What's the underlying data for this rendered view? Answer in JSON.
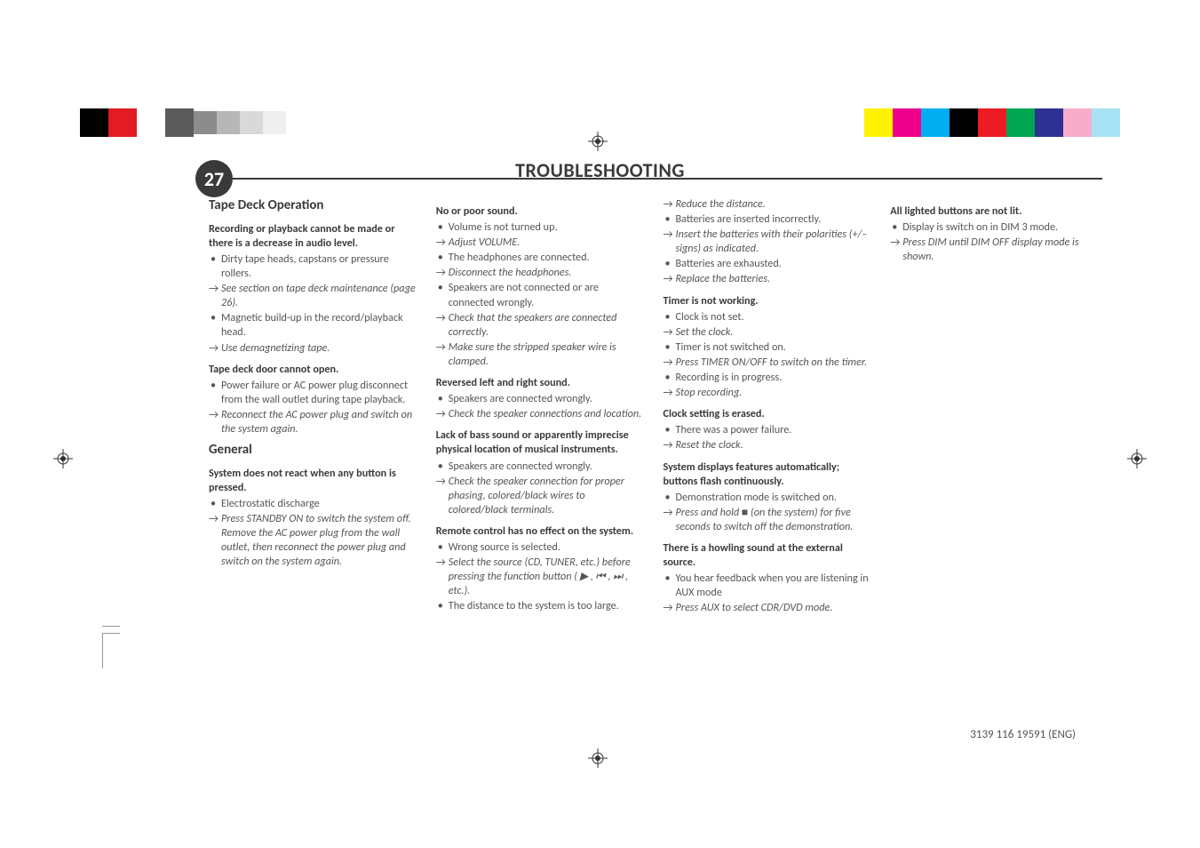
{
  "page_number": "27",
  "title": "TROUBLESHOOTING",
  "footer": "3139 116 19591 (ENG)",
  "color_bars": {
    "left": [
      "#000000",
      "#e31b23",
      "#ffffff",
      "#5b5b5b",
      "#8c8c8c",
      "#b7b7b7",
      "#d9d9d9",
      "#efefef"
    ],
    "right": [
      "#fff200",
      "#ec008c",
      "#00aeef",
      "#000000",
      "#ed1c24",
      "#00a651",
      "#2e3192",
      "#f7adc9",
      "#a6e2f4"
    ]
  },
  "columns": [
    {
      "sections": [
        {
          "heading": "Tape Deck Operation",
          "problems": [
            {
              "title": "Recording or playback cannot be made or there is a decrease in audio level.",
              "items": [
                {
                  "t": "cause",
                  "text": "Dirty tape heads, capstans or pressure rollers."
                },
                {
                  "t": "fix",
                  "text": "See section on tape deck maintenance (page 26)."
                },
                {
                  "t": "cause",
                  "text": "Magnetic build-up in the record/playback head."
                },
                {
                  "t": "fix",
                  "text": "Use demagnetizing tape."
                }
              ]
            },
            {
              "title": "Tape deck door cannot open.",
              "items": [
                {
                  "t": "cause",
                  "text": "Power failure or AC power plug disconnect from the wall outlet during tape playback."
                },
                {
                  "t": "fix",
                  "text": "Reconnect the AC power plug and switch on the system again."
                }
              ]
            }
          ]
        },
        {
          "heading": "General",
          "problems": [
            {
              "title": "System does not react when any button is pressed.",
              "items": [
                {
                  "t": "cause",
                  "text": "Electrostatic discharge"
                },
                {
                  "t": "fix",
                  "text": "Press STANDBY ON to switch the system off. Remove the AC power plug from the wall outlet, then reconnect the power plug and switch on the system again."
                }
              ]
            }
          ]
        }
      ]
    },
    {
      "sections": [
        {
          "heading": "",
          "problems": [
            {
              "title": "No or poor sound.",
              "items": [
                {
                  "t": "cause",
                  "text": "Volume is not turned up."
                },
                {
                  "t": "fix",
                  "text": "Adjust VOLUME."
                },
                {
                  "t": "cause",
                  "text": "The headphones are connected."
                },
                {
                  "t": "fix",
                  "text": "Disconnect the headphones."
                },
                {
                  "t": "cause",
                  "text": "Speakers are not connected or are connected wrongly."
                },
                {
                  "t": "fix",
                  "text": "Check that the speakers are connected correctly."
                },
                {
                  "t": "fix",
                  "text": "Make sure the stripped speaker wire is clamped."
                }
              ]
            },
            {
              "title": "Reversed left and right sound.",
              "items": [
                {
                  "t": "cause",
                  "text": "Speakers are connected wrongly."
                },
                {
                  "t": "fix",
                  "text": "Check the speaker connections and location."
                }
              ]
            },
            {
              "title": "Lack of bass sound or apparently imprecise physical location of musical instruments.",
              "items": [
                {
                  "t": "cause",
                  "text": "Speakers are connected wrongly."
                },
                {
                  "t": "fix",
                  "text": "Check the speaker connection for proper phasing, colored/black wires to colored/black terminals."
                }
              ]
            },
            {
              "title": "Remote control has no effect on the system.",
              "items": [
                {
                  "t": "cause",
                  "text": "Wrong source is selected."
                },
                {
                  "t": "fix",
                  "text": "Select the source (CD, TUNER, etc.) before pressing the function button ( ▶ , ⏮ , ⏭ , etc.)."
                },
                {
                  "t": "cause",
                  "text": "The distance to the system is too large."
                }
              ]
            }
          ]
        }
      ]
    },
    {
      "sections": [
        {
          "heading": "",
          "problems": [
            {
              "title": "",
              "items": [
                {
                  "t": "fix",
                  "text": "Reduce the distance."
                },
                {
                  "t": "cause",
                  "text": "Batteries are inserted incorrectly."
                },
                {
                  "t": "fix",
                  "text": "Insert the batteries with their polarities (+/– signs) as indicated."
                },
                {
                  "t": "cause",
                  "text": "Batteries are exhausted."
                },
                {
                  "t": "fix",
                  "text": "Replace the batteries."
                }
              ]
            },
            {
              "title": "Timer is not working.",
              "items": [
                {
                  "t": "cause",
                  "text": "Clock is not set."
                },
                {
                  "t": "fix",
                  "text": "Set the clock."
                },
                {
                  "t": "cause",
                  "text": "Timer is not switched on."
                },
                {
                  "t": "fix",
                  "text": "Press TIMER ON/OFF to switch on the timer."
                },
                {
                  "t": "cause",
                  "text": "Recording is in progress."
                },
                {
                  "t": "fix",
                  "text": "Stop recording."
                }
              ]
            },
            {
              "title": "Clock setting is erased.",
              "items": [
                {
                  "t": "cause",
                  "text": "There was a power failure."
                },
                {
                  "t": "fix",
                  "text": "Reset the clock."
                }
              ]
            },
            {
              "title": "System displays features automatically; buttons flash continuously.",
              "items": [
                {
                  "t": "cause",
                  "text": "Demonstration mode is switched on."
                },
                {
                  "t": "fix",
                  "text": "Press and hold ■ (on the system) for five seconds to switch off the demonstration."
                }
              ]
            },
            {
              "title": "There is a howling sound at the external source.",
              "items": [
                {
                  "t": "cause",
                  "text": "You hear feedback when you are listening in AUX mode"
                },
                {
                  "t": "fix",
                  "text": "Press AUX to select CDR/DVD mode."
                }
              ]
            }
          ]
        }
      ]
    },
    {
      "sections": [
        {
          "heading": "",
          "problems": [
            {
              "title": "All lighted buttons are not lit.",
              "items": [
                {
                  "t": "cause",
                  "text": "Display is switch on in DIM 3 mode."
                },
                {
                  "t": "fix",
                  "text": "Press DIM until DIM OFF display mode is shown."
                }
              ]
            }
          ]
        }
      ]
    }
  ]
}
